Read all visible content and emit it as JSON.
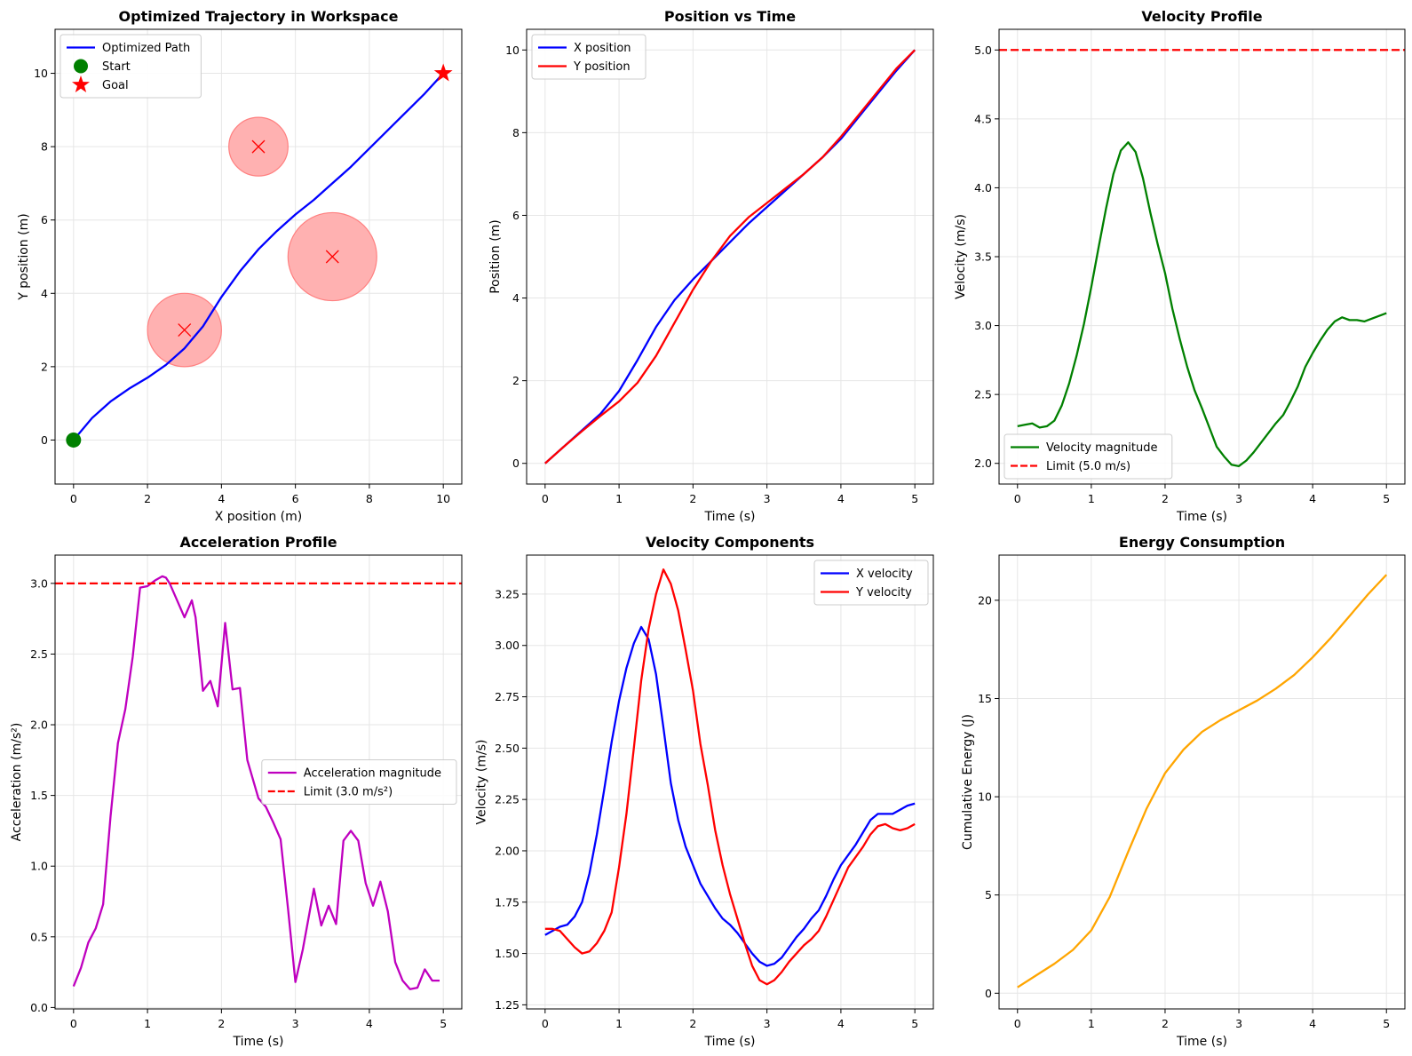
{
  "colors": {
    "blue": "#0000ff",
    "red": "#ff0000",
    "green": "#008000",
    "magenta": "#bf00bf",
    "orange": "#ffa500",
    "obstacle_fill": "#ffb1b1",
    "obstacle_edge": "#ff8080"
  },
  "chart_data": [
    {
      "id": "trajectory",
      "type": "line",
      "title": "Optimized Trajectory in Workspace",
      "xlabel": "X position (m)",
      "ylabel": "Y position (m)",
      "xlim": [
        -0.5,
        10.5
      ],
      "ylim": [
        -1.2,
        11.2
      ],
      "xticks": [
        0,
        2,
        4,
        6,
        8,
        10
      ],
      "yticks": [
        0,
        2,
        4,
        6,
        8,
        10
      ],
      "grid": true,
      "legend_loc": "upper left",
      "series": [
        {
          "name": "Optimized Path",
          "color": "#0000ff",
          "style": "solid",
          "x": [
            0,
            0.5,
            1.0,
            1.5,
            2.0,
            2.5,
            3.0,
            3.5,
            4.0,
            4.5,
            5.0,
            5.5,
            6.0,
            6.5,
            7.0,
            7.5,
            8.0,
            8.5,
            9.0,
            9.5,
            10.0
          ],
          "y": [
            0,
            0.6,
            1.05,
            1.4,
            1.7,
            2.05,
            2.5,
            3.1,
            3.9,
            4.6,
            5.2,
            5.7,
            6.15,
            6.55,
            7.0,
            7.45,
            7.95,
            8.45,
            8.95,
            9.45,
            10.0
          ]
        }
      ],
      "markers": [
        {
          "name": "Start",
          "shape": "circle",
          "x": 0,
          "y": 0,
          "color": "#008000"
        },
        {
          "name": "Goal",
          "shape": "star",
          "x": 10,
          "y": 10,
          "color": "#ff0000"
        }
      ],
      "obstacles": [
        {
          "cx": 3,
          "cy": 3,
          "r": 1.0
        },
        {
          "cx": 5,
          "cy": 8,
          "r": 0.8
        },
        {
          "cx": 7,
          "cy": 5,
          "r": 1.2
        }
      ]
    },
    {
      "id": "position",
      "type": "line",
      "title": "Position vs Time",
      "xlabel": "Time (s)",
      "ylabel": "Position (m)",
      "xlim": [
        -0.25,
        5.25
      ],
      "ylim": [
        -0.5,
        10.5
      ],
      "xticks": [
        0,
        1,
        2,
        3,
        4,
        5
      ],
      "yticks": [
        0,
        2,
        4,
        6,
        8,
        10
      ],
      "grid": true,
      "legend_loc": "upper left",
      "series": [
        {
          "name": "X position",
          "color": "#0000ff",
          "style": "solid",
          "x": [
            0,
            0.25,
            0.5,
            0.75,
            1.0,
            1.25,
            1.5,
            1.75,
            2.0,
            2.25,
            2.5,
            2.75,
            3.0,
            3.25,
            3.5,
            3.75,
            4.0,
            4.25,
            4.5,
            4.75,
            5.0
          ],
          "y": [
            0,
            0.4,
            0.8,
            1.2,
            1.75,
            2.5,
            3.3,
            3.95,
            4.45,
            4.9,
            5.35,
            5.8,
            6.2,
            6.6,
            7.0,
            7.4,
            7.85,
            8.4,
            8.95,
            9.5,
            10.0
          ]
        },
        {
          "name": "Y position",
          "color": "#ff0000",
          "style": "solid",
          "x": [
            0,
            0.25,
            0.5,
            0.75,
            1.0,
            1.25,
            1.5,
            1.75,
            2.0,
            2.25,
            2.5,
            2.75,
            3.0,
            3.25,
            3.5,
            3.75,
            4.0,
            4.25,
            4.5,
            4.75,
            5.0
          ],
          "y": [
            0,
            0.4,
            0.78,
            1.15,
            1.5,
            1.95,
            2.6,
            3.4,
            4.2,
            4.9,
            5.5,
            5.95,
            6.3,
            6.65,
            7.0,
            7.4,
            7.9,
            8.45,
            9.0,
            9.55,
            10.0
          ]
        }
      ]
    },
    {
      "id": "velocity",
      "type": "line",
      "title": "Velocity Profile",
      "xlabel": "Time (s)",
      "ylabel": "Velocity (m/s)",
      "xlim": [
        -0.25,
        5.25
      ],
      "ylim": [
        1.85,
        5.15
      ],
      "xticks": [
        0,
        1,
        2,
        3,
        4,
        5
      ],
      "yticks": [
        2.0,
        2.5,
        3.0,
        3.5,
        4.0,
        4.5,
        5.0
      ],
      "ytick_format": "1",
      "grid": true,
      "legend_loc": "lower left",
      "series": [
        {
          "name": "Velocity magnitude",
          "color": "#008000",
          "style": "solid",
          "x": [
            0,
            0.1,
            0.2,
            0.3,
            0.4,
            0.5,
            0.6,
            0.7,
            0.8,
            0.9,
            1.0,
            1.1,
            1.2,
            1.3,
            1.4,
            1.5,
            1.6,
            1.7,
            1.8,
            1.9,
            2.0,
            2.1,
            2.2,
            2.3,
            2.4,
            2.5,
            2.6,
            2.7,
            2.8,
            2.9,
            3.0,
            3.1,
            3.2,
            3.3,
            3.4,
            3.5,
            3.6,
            3.7,
            3.8,
            3.9,
            4.0,
            4.1,
            4.2,
            4.3,
            4.4,
            4.5,
            4.6,
            4.7,
            4.8,
            4.9,
            5.0
          ],
          "y": [
            2.27,
            2.28,
            2.29,
            2.26,
            2.27,
            2.31,
            2.42,
            2.58,
            2.78,
            3.01,
            3.28,
            3.57,
            3.85,
            4.1,
            4.27,
            4.33,
            4.26,
            4.07,
            3.82,
            3.59,
            3.38,
            3.12,
            2.9,
            2.7,
            2.53,
            2.4,
            2.26,
            2.12,
            2.05,
            1.99,
            1.98,
            2.02,
            2.08,
            2.15,
            2.22,
            2.29,
            2.35,
            2.45,
            2.56,
            2.7,
            2.8,
            2.89,
            2.97,
            3.03,
            3.06,
            3.04,
            3.04,
            3.03,
            3.05,
            3.07,
            3.09
          ]
        },
        {
          "name": "Limit (5.0 m/s)",
          "color": "#ff0000",
          "style": "dashed",
          "x": [
            -0.25,
            5.25
          ],
          "y": [
            5.0,
            5.0
          ]
        }
      ]
    },
    {
      "id": "acceleration",
      "type": "line",
      "title": "Acceleration Profile",
      "xlabel": "Time (s)",
      "ylabel": "Acceleration (m/s²)",
      "xlim": [
        -0.25,
        5.25
      ],
      "ylim": [
        -0.01,
        3.2
      ],
      "xticks": [
        0,
        1,
        2,
        3,
        4,
        5
      ],
      "yticks": [
        0.0,
        0.5,
        1.0,
        1.5,
        2.0,
        2.5,
        3.0
      ],
      "ytick_format": "1",
      "grid": true,
      "legend_loc": "center right",
      "series": [
        {
          "name": "Acceleration magnitude",
          "color": "#bf00bf",
          "style": "solid",
          "x": [
            0,
            0.1,
            0.2,
            0.3,
            0.4,
            0.5,
            0.6,
            0.7,
            0.8,
            0.9,
            1.0,
            1.1,
            1.2,
            1.25,
            1.3,
            1.4,
            1.5,
            1.6,
            1.65,
            1.75,
            1.85,
            1.95,
            2.05,
            2.15,
            2.25,
            2.35,
            2.5,
            2.6,
            2.7,
            2.8,
            2.9,
            3.0,
            3.1,
            3.25,
            3.35,
            3.45,
            3.55,
            3.65,
            3.75,
            3.85,
            3.95,
            4.05,
            4.15,
            4.25,
            4.35,
            4.45,
            4.55,
            4.65,
            4.75,
            4.85,
            4.95
          ],
          "y": [
            0.15,
            0.28,
            0.46,
            0.56,
            0.73,
            1.35,
            1.87,
            2.11,
            2.48,
            2.97,
            2.98,
            3.02,
            3.05,
            3.04,
            3.0,
            2.88,
            2.76,
            2.88,
            2.76,
            2.24,
            2.31,
            2.13,
            2.72,
            2.25,
            2.26,
            1.75,
            1.48,
            1.42,
            1.31,
            1.19,
            0.7,
            0.18,
            0.41,
            0.84,
            0.58,
            0.72,
            0.59,
            1.18,
            1.25,
            1.18,
            0.88,
            0.72,
            0.89,
            0.68,
            0.32,
            0.19,
            0.13,
            0.14,
            0.27,
            0.19,
            0.19
          ]
        },
        {
          "name": "Limit (3.0 m/s²)",
          "color": "#ff0000",
          "style": "dashed",
          "x": [
            -0.25,
            5.25
          ],
          "y": [
            3.0,
            3.0
          ]
        }
      ]
    },
    {
      "id": "components",
      "type": "line",
      "title": "Velocity Components",
      "xlabel": "Time (s)",
      "ylabel": "Velocity (m/s)",
      "xlim": [
        -0.25,
        5.25
      ],
      "ylim": [
        1.23,
        3.44
      ],
      "xticks": [
        0,
        1,
        2,
        3,
        4,
        5
      ],
      "yticks": [
        1.25,
        1.5,
        1.75,
        2.0,
        2.25,
        2.5,
        2.75,
        3.0,
        3.25
      ],
      "ytick_format": "2",
      "grid": true,
      "legend_loc": "upper right",
      "series": [
        {
          "name": "X velocity",
          "color": "#0000ff",
          "style": "solid",
          "x": [
            0,
            0.1,
            0.2,
            0.3,
            0.4,
            0.5,
            0.6,
            0.7,
            0.8,
            0.9,
            1.0,
            1.1,
            1.2,
            1.3,
            1.4,
            1.5,
            1.6,
            1.7,
            1.8,
            1.9,
            2.0,
            2.1,
            2.2,
            2.3,
            2.4,
            2.5,
            2.6,
            2.7,
            2.8,
            2.9,
            3.0,
            3.1,
            3.2,
            3.3,
            3.4,
            3.5,
            3.6,
            3.7,
            3.8,
            3.9,
            4.0,
            4.1,
            4.2,
            4.3,
            4.4,
            4.5,
            4.6,
            4.7,
            4.8,
            4.9,
            5.0
          ],
          "y": [
            1.59,
            1.61,
            1.63,
            1.64,
            1.68,
            1.75,
            1.89,
            2.08,
            2.3,
            2.53,
            2.73,
            2.89,
            3.01,
            3.09,
            3.03,
            2.86,
            2.6,
            2.33,
            2.15,
            2.02,
            1.93,
            1.84,
            1.78,
            1.72,
            1.67,
            1.64,
            1.6,
            1.55,
            1.5,
            1.46,
            1.44,
            1.45,
            1.48,
            1.53,
            1.58,
            1.62,
            1.67,
            1.71,
            1.78,
            1.86,
            1.93,
            1.98,
            2.03,
            2.09,
            2.15,
            2.18,
            2.18,
            2.18,
            2.2,
            2.22,
            2.23
          ]
        },
        {
          "name": "Y velocity",
          "color": "#ff0000",
          "style": "solid",
          "x": [
            0,
            0.1,
            0.2,
            0.3,
            0.4,
            0.5,
            0.6,
            0.7,
            0.8,
            0.9,
            1.0,
            1.1,
            1.2,
            1.3,
            1.4,
            1.5,
            1.6,
            1.7,
            1.8,
            1.9,
            2.0,
            2.1,
            2.2,
            2.3,
            2.4,
            2.5,
            2.6,
            2.7,
            2.8,
            2.9,
            3.0,
            3.1,
            3.2,
            3.3,
            3.4,
            3.5,
            3.6,
            3.7,
            3.8,
            3.9,
            4.0,
            4.1,
            4.2,
            4.3,
            4.4,
            4.5,
            4.6,
            4.7,
            4.8,
            4.9,
            5.0
          ],
          "y": [
            1.62,
            1.62,
            1.61,
            1.57,
            1.53,
            1.5,
            1.51,
            1.55,
            1.61,
            1.7,
            1.92,
            2.18,
            2.5,
            2.83,
            3.08,
            3.25,
            3.37,
            3.3,
            3.17,
            2.98,
            2.78,
            2.52,
            2.32,
            2.1,
            1.93,
            1.79,
            1.67,
            1.55,
            1.44,
            1.37,
            1.35,
            1.37,
            1.41,
            1.46,
            1.5,
            1.54,
            1.57,
            1.61,
            1.68,
            1.76,
            1.84,
            1.92,
            1.97,
            2.02,
            2.08,
            2.12,
            2.13,
            2.11,
            2.1,
            2.11,
            2.13
          ]
        }
      ]
    },
    {
      "id": "energy",
      "type": "line",
      "title": "Energy Consumption",
      "xlabel": "Time (s)",
      "ylabel": "Cumulative Energy (J)",
      "xlim": [
        -0.25,
        5.25
      ],
      "ylim": [
        -0.8,
        22.3
      ],
      "xticks": [
        0,
        1,
        2,
        3,
        4,
        5
      ],
      "yticks": [
        0,
        5,
        10,
        15,
        20
      ],
      "grid": true,
      "legend_loc": "",
      "series": [
        {
          "name": "Cumulative Energy",
          "color": "#ffa500",
          "style": "solid",
          "x": [
            0,
            0.25,
            0.5,
            0.75,
            1.0,
            1.25,
            1.5,
            1.75,
            2.0,
            2.25,
            2.5,
            2.75,
            3.0,
            3.25,
            3.5,
            3.75,
            4.0,
            4.25,
            4.5,
            4.75,
            5.0
          ],
          "y": [
            0.3,
            0.9,
            1.5,
            2.2,
            3.2,
            4.9,
            7.2,
            9.4,
            11.2,
            12.4,
            13.3,
            13.9,
            14.4,
            14.9,
            15.5,
            16.2,
            17.1,
            18.1,
            19.2,
            20.3,
            21.3
          ]
        }
      ]
    }
  ]
}
